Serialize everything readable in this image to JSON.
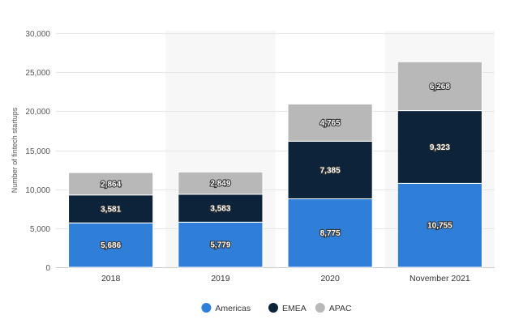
{
  "chart_data": {
    "type": "bar",
    "stacked": true,
    "categories": [
      "2018",
      "2019",
      "2020",
      "November 2021"
    ],
    "series": [
      {
        "name": "Americas",
        "color": "#2f7ed8",
        "values": [
          5686,
          5779,
          8775,
          10755
        ],
        "labels": [
          "5,686",
          "5,779",
          "8,775",
          "10,755"
        ]
      },
      {
        "name": "EMEA",
        "color": "#0d233a",
        "values": [
          3581,
          3583,
          7385,
          9323
        ],
        "labels": [
          "3,581",
          "3,583",
          "7,385",
          "9,323"
        ]
      },
      {
        "name": "APAC",
        "color": "#b8b8b8",
        "values": [
          2864,
          2849,
          4765,
          6268
        ],
        "labels": [
          "2,864",
          "2,849",
          "4,765",
          "6,268"
        ]
      }
    ],
    "ylabel": "Number of fintech startups",
    "xlabel": "",
    "ylim": [
      0,
      30000
    ],
    "yticks": [
      0,
      5000,
      10000,
      15000,
      20000,
      25000,
      30000
    ],
    "ytick_labels": [
      "0",
      "5,000",
      "10,000",
      "15,000",
      "20,000",
      "25,000",
      "30,000"
    ],
    "grid": true,
    "legend_position": "bottom-center"
  }
}
